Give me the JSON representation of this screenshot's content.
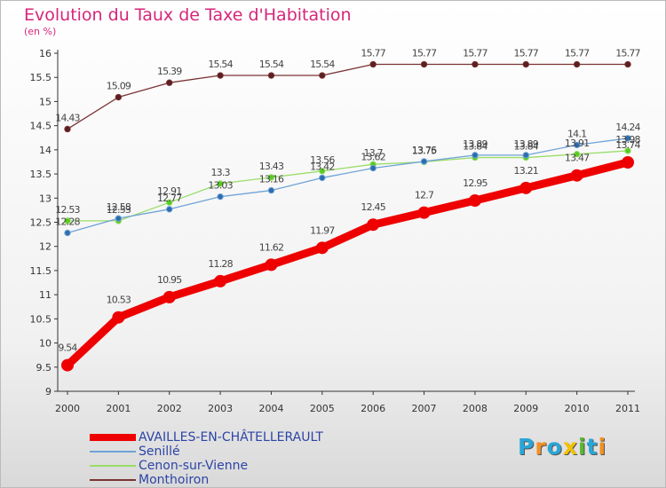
{
  "title": "Evolution du Taux de Taxe d'Habitation",
  "subtitle": "(en %)",
  "logo": {
    "text": "Proxiti",
    "letter_colors": [
      "#2aa6d6",
      "#f29022",
      "#2aa6d6",
      "#f2c200",
      "#5ab72e",
      "#2aa6d6",
      "#f29022"
    ]
  },
  "chart_data": {
    "type": "line",
    "title": "Evolution du Taux de Taxe d'Habitation",
    "ylabel": "(en %)",
    "xlabel": "",
    "x": [
      "2000",
      "2001",
      "2002",
      "2003",
      "2004",
      "2005",
      "2006",
      "2007",
      "2008",
      "2009",
      "2010",
      "2011"
    ],
    "ylim": [
      9,
      16
    ],
    "yticks": [
      "9",
      "9.5",
      "10",
      "10.5",
      "11",
      "11.5",
      "12",
      "12.5",
      "13",
      "13.5",
      "14",
      "14.5",
      "15",
      "15.5",
      "16"
    ],
    "grid": false,
    "legend_position": "bottom-left",
    "series": [
      {
        "name": "AVAILLES-EN-CHÂTELLERAULT",
        "color": "#ee0000",
        "style": "bold",
        "values": [
          9.54,
          10.53,
          10.95,
          11.28,
          11.62,
          11.97,
          12.45,
          12.7,
          12.95,
          13.21,
          13.47,
          13.74
        ]
      },
      {
        "name": "Senillé",
        "color": "#6fa3d6",
        "dot": "#2c6cb0",
        "style": "thin",
        "values": [
          12.28,
          12.58,
          12.77,
          13.03,
          13.16,
          13.42,
          13.62,
          13.76,
          13.89,
          13.89,
          14.1,
          14.24
        ]
      },
      {
        "name": "Cenon-sur-Vienne",
        "color": "#99dd66",
        "dot": "#55cc22",
        "style": "thin",
        "values": [
          12.53,
          12.53,
          12.91,
          13.3,
          13.43,
          13.56,
          13.7,
          13.75,
          13.84,
          13.84,
          13.91,
          13.98
        ]
      },
      {
        "name": "Monthoiron",
        "color": "#7a3333",
        "dot": "#5a1f1f",
        "style": "thin",
        "values": [
          14.43,
          15.09,
          15.39,
          15.54,
          15.54,
          15.54,
          15.77,
          15.77,
          15.77,
          15.77,
          15.77,
          15.77
        ]
      }
    ]
  }
}
